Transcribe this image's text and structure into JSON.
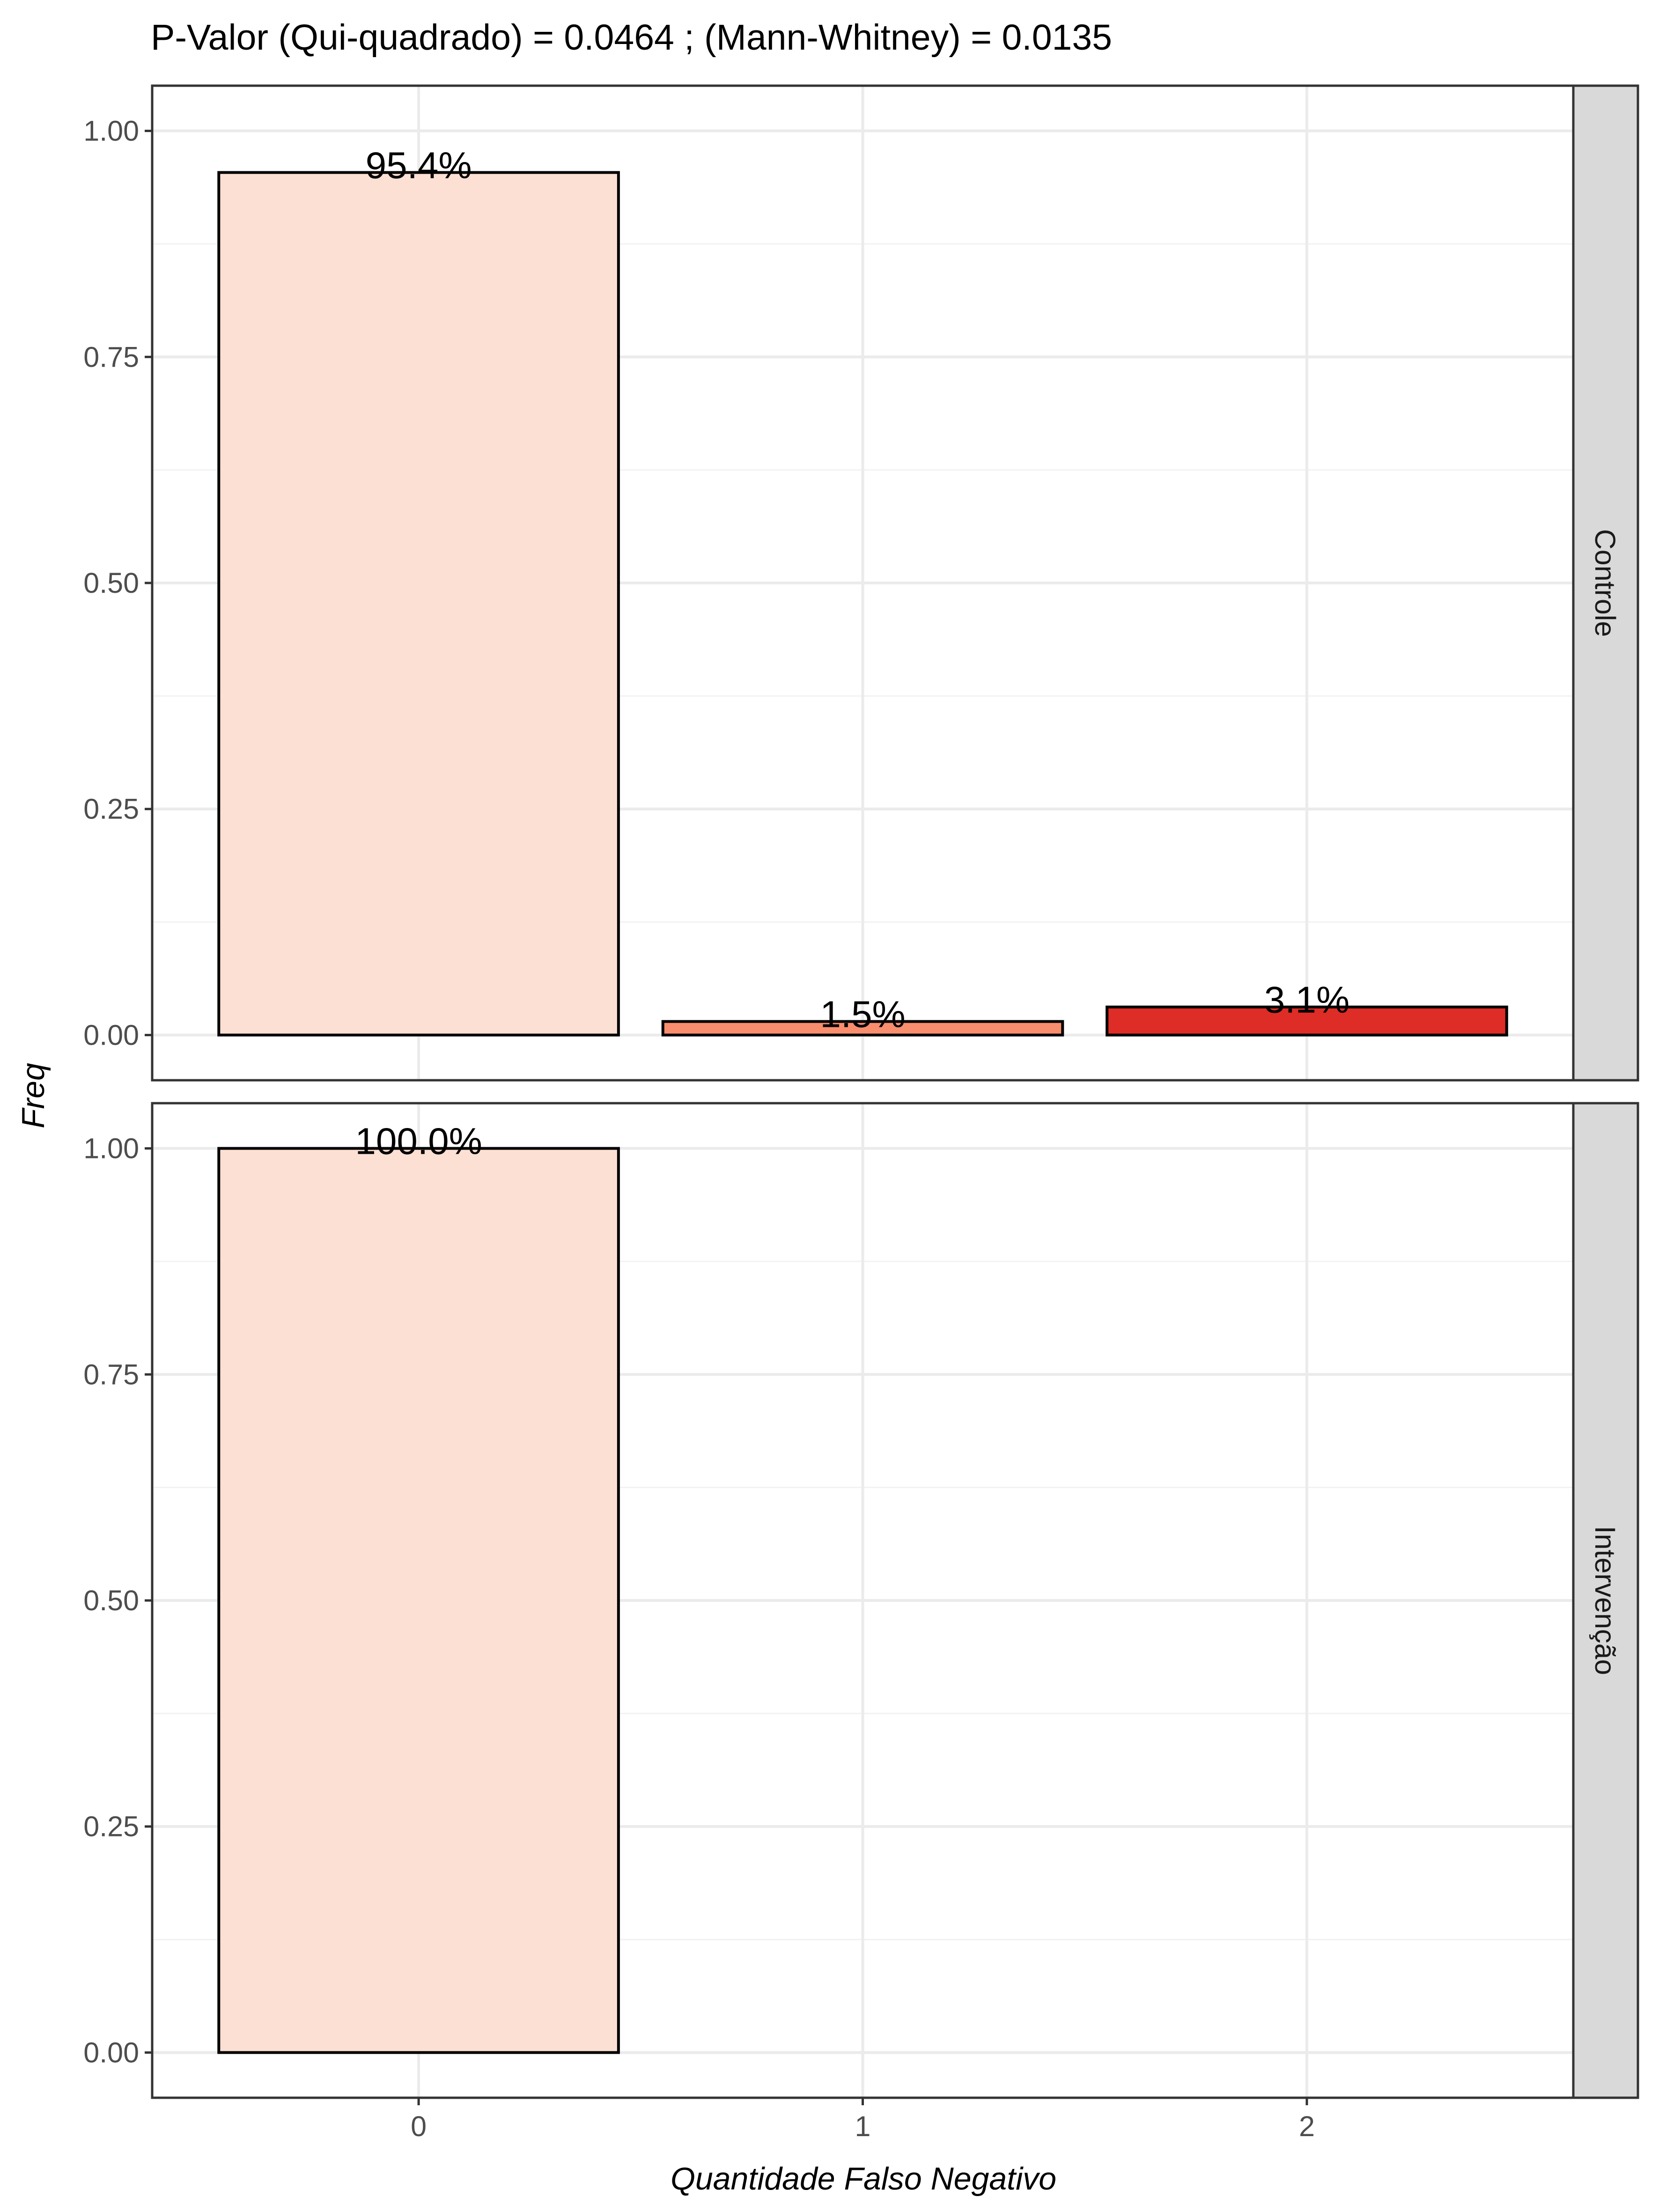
{
  "chart_data": {
    "type": "bar",
    "title": "P-Valor (Qui-quadrado) = 0.0464 ; (Mann-Whitney) = 0.0135",
    "xlabel": "Quantidade Falso Negativo",
    "ylabel": "Freq",
    "categories": [
      "0",
      "1",
      "2"
    ],
    "ylim": [
      -0.05,
      1.05
    ],
    "yticks": [
      "0.00",
      "0.25",
      "0.50",
      "0.75",
      "1.00"
    ],
    "colors": [
      "#FCE0D3",
      "#F88E6E",
      "#DE2D26"
    ],
    "grid": true,
    "panels": [
      {
        "name": "Controle",
        "values": [
          0.954,
          0.015,
          0.031
        ],
        "labels": [
          "95.4%",
          "1.5%",
          "3.1%"
        ]
      },
      {
        "name": "Intervenção",
        "values": [
          1.0,
          null,
          null
        ],
        "labels": [
          "100.0%",
          "",
          ""
        ]
      }
    ]
  }
}
